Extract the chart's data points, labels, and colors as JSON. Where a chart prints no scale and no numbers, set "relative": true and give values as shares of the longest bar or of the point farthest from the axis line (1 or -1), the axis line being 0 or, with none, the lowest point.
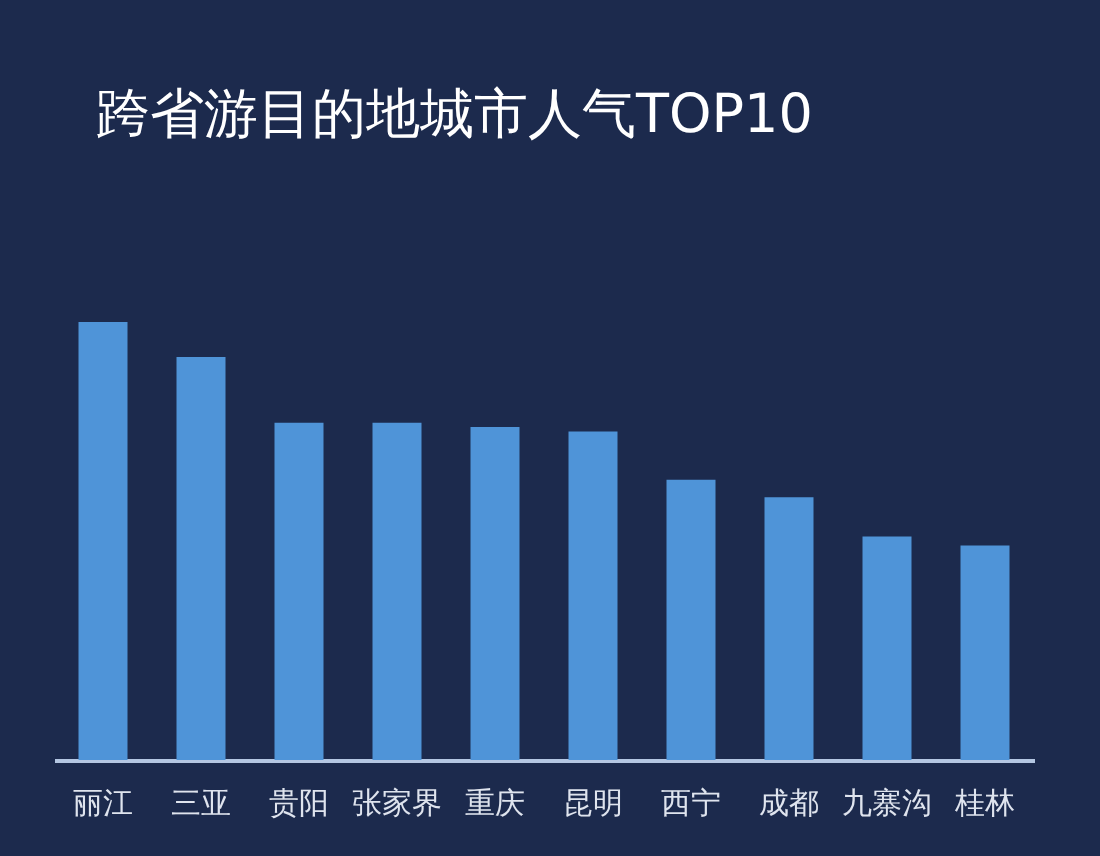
{
  "chart_data": {
    "type": "bar",
    "title": "跨省游目的地城市人气TOP10",
    "categories": [
      "丽江",
      "三亚",
      "贵阳",
      "张家界",
      "重庆",
      "昆明",
      "西宁",
      "成都",
      "九寨沟",
      "桂林"
    ],
    "values": [
      1,
      0.92,
      0.77,
      0.77,
      0.76,
      0.75,
      0.64,
      0.6,
      0.51,
      0.49
    ],
    "color": "#4f94d8",
    "relative": true
  }
}
